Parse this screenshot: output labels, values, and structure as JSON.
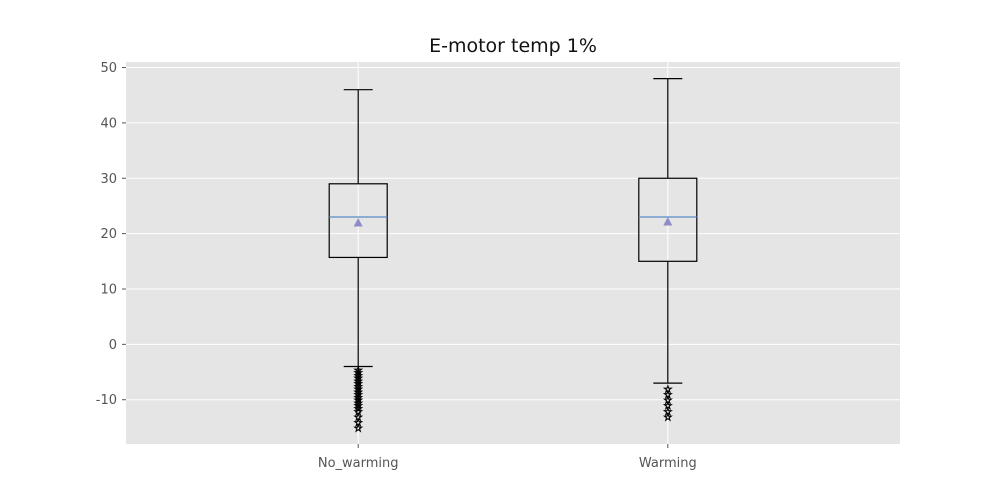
{
  "chart_data": {
    "type": "box",
    "title": "E-motor temp 1%",
    "xlabel": "",
    "ylabel": "",
    "categories": [
      "No_warming",
      "Warming"
    ],
    "ylim": [
      -18,
      51
    ],
    "y_ticks": [
      -10,
      0,
      10,
      20,
      30,
      40,
      50
    ],
    "grid": true,
    "boxes": [
      {
        "name": "No_warming",
        "whisker_low": -4,
        "q1": 15.7,
        "median": 23,
        "q3": 29,
        "whisker_high": 46,
        "mean": 22,
        "outliers": [
          -4.5,
          -5,
          -5.5,
          -6,
          -6.5,
          -7,
          -7.5,
          -8,
          -8.5,
          -9,
          -9.5,
          -10,
          -10.5,
          -11,
          -11.5,
          -12,
          -13,
          -14,
          -15
        ]
      },
      {
        "name": "Warming",
        "whisker_low": -7,
        "q1": 15,
        "median": 23,
        "q3": 30,
        "whisker_high": 48,
        "mean": 22.2,
        "outliers": [
          -8,
          -9,
          -10,
          -11,
          -12,
          -13
        ]
      }
    ]
  },
  "colors": {
    "plot_background": "#e5e5e5",
    "grid": "#ffffff",
    "box_line": "#000000",
    "median_line": "#5a8ac6",
    "mean_marker": "#8e8cc8"
  }
}
